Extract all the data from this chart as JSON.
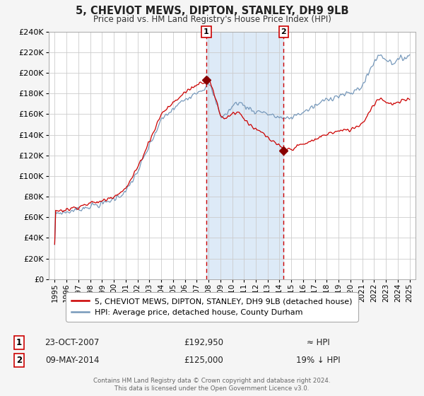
{
  "title": "5, CHEVIOT MEWS, DIPTON, STANLEY, DH9 9LB",
  "subtitle": "Price paid vs. HM Land Registry's House Price Index (HPI)",
  "bg_color": "#f5f5f5",
  "plot_bg_color": "#ffffff",
  "grid_color": "#cccccc",
  "shade_color": "#ddeaf7",
  "red_line_color": "#cc0000",
  "blue_line_color": "#7799bb",
  "marker_color": "#880000",
  "vline_color": "#cc0000",
  "t1_x": 2007.81,
  "t1_price": 192950,
  "t2_x": 2014.36,
  "t2_price": 125000,
  "ylim": [
    0,
    240000
  ],
  "ytick_step": 20000,
  "xlim_start": 1994.5,
  "xlim_end": 2025.5,
  "xtick_years": [
    1995,
    1996,
    1997,
    1998,
    1999,
    2000,
    2001,
    2002,
    2003,
    2004,
    2005,
    2006,
    2007,
    2008,
    2009,
    2010,
    2011,
    2012,
    2013,
    2014,
    2015,
    2016,
    2017,
    2018,
    2019,
    2020,
    2021,
    2022,
    2023,
    2024,
    2025
  ],
  "legend_line1": "5, CHEVIOT MEWS, DIPTON, STANLEY, DH9 9LB (detached house)",
  "legend_line2": "HPI: Average price, detached house, County Durham",
  "ann1_label": "1",
  "ann1_date": "23-OCT-2007",
  "ann1_price": "£192,950",
  "ann1_hpi": "≈ HPI",
  "ann2_label": "2",
  "ann2_date": "09-MAY-2014",
  "ann2_price": "£125,000",
  "ann2_hpi": "19% ↓ HPI",
  "footer1": "Contains HM Land Registry data © Crown copyright and database right 2024.",
  "footer2": "This data is licensed under the Open Government Licence v3.0."
}
